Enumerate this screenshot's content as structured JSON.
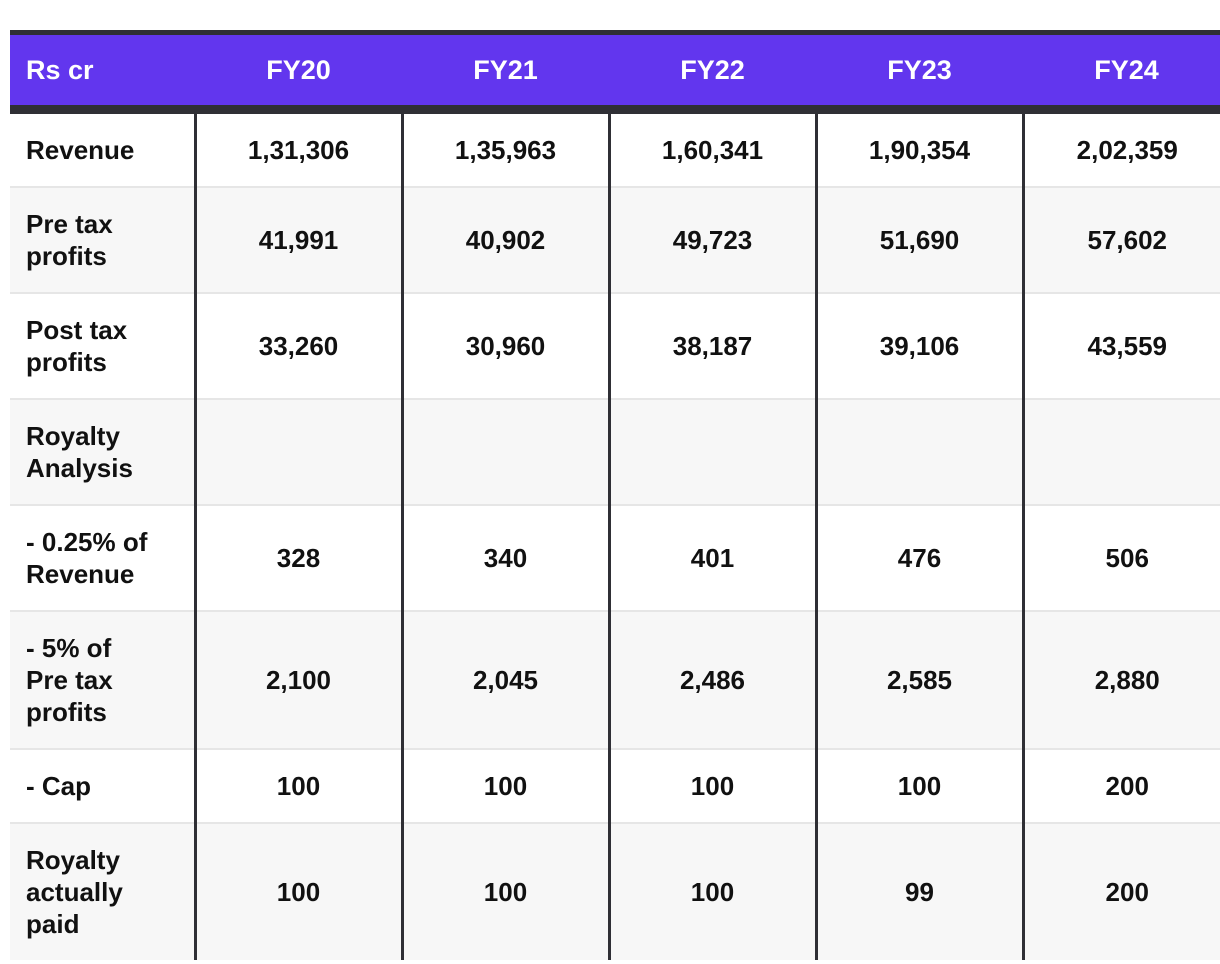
{
  "table": {
    "unit_label": "Rs cr",
    "years": [
      "FY20",
      "FY21",
      "FY22",
      "FY23",
      "FY24"
    ],
    "rows": [
      {
        "label": "Revenue",
        "values": [
          "1,31,306",
          "1,35,963",
          "1,60,341",
          "1,90,354",
          "2,02,359"
        ]
      },
      {
        "label": "Pre tax\nprofits",
        "values": [
          "41,991",
          "40,902",
          "49,723",
          "51,690",
          "57,602"
        ]
      },
      {
        "label": "Post tax\nprofits",
        "values": [
          "33,260",
          "30,960",
          "38,187",
          "39,106",
          "43,559"
        ]
      },
      {
        "label": "Royalty\nAnalysis",
        "values": [
          "",
          "",
          "",
          "",
          ""
        ]
      },
      {
        "label": "- 0.25% of\nRevenue",
        "values": [
          "328",
          "340",
          "401",
          "476",
          "506"
        ]
      },
      {
        "label": "- 5% of\nPre tax\nprofits",
        "values": [
          "2,100",
          "2,045",
          "2,486",
          "2,585",
          "2,880"
        ]
      },
      {
        "label": "- Cap",
        "values": [
          "100",
          "100",
          "100",
          "100",
          "200"
        ]
      },
      {
        "label": "Royalty\nactually\npaid",
        "values": [
          "100",
          "100",
          "100",
          "99",
          "200"
        ]
      }
    ],
    "colors": {
      "header_bg": "#6236ee",
      "header_text": "#ffffff",
      "border": "#2f2f35"
    }
  }
}
